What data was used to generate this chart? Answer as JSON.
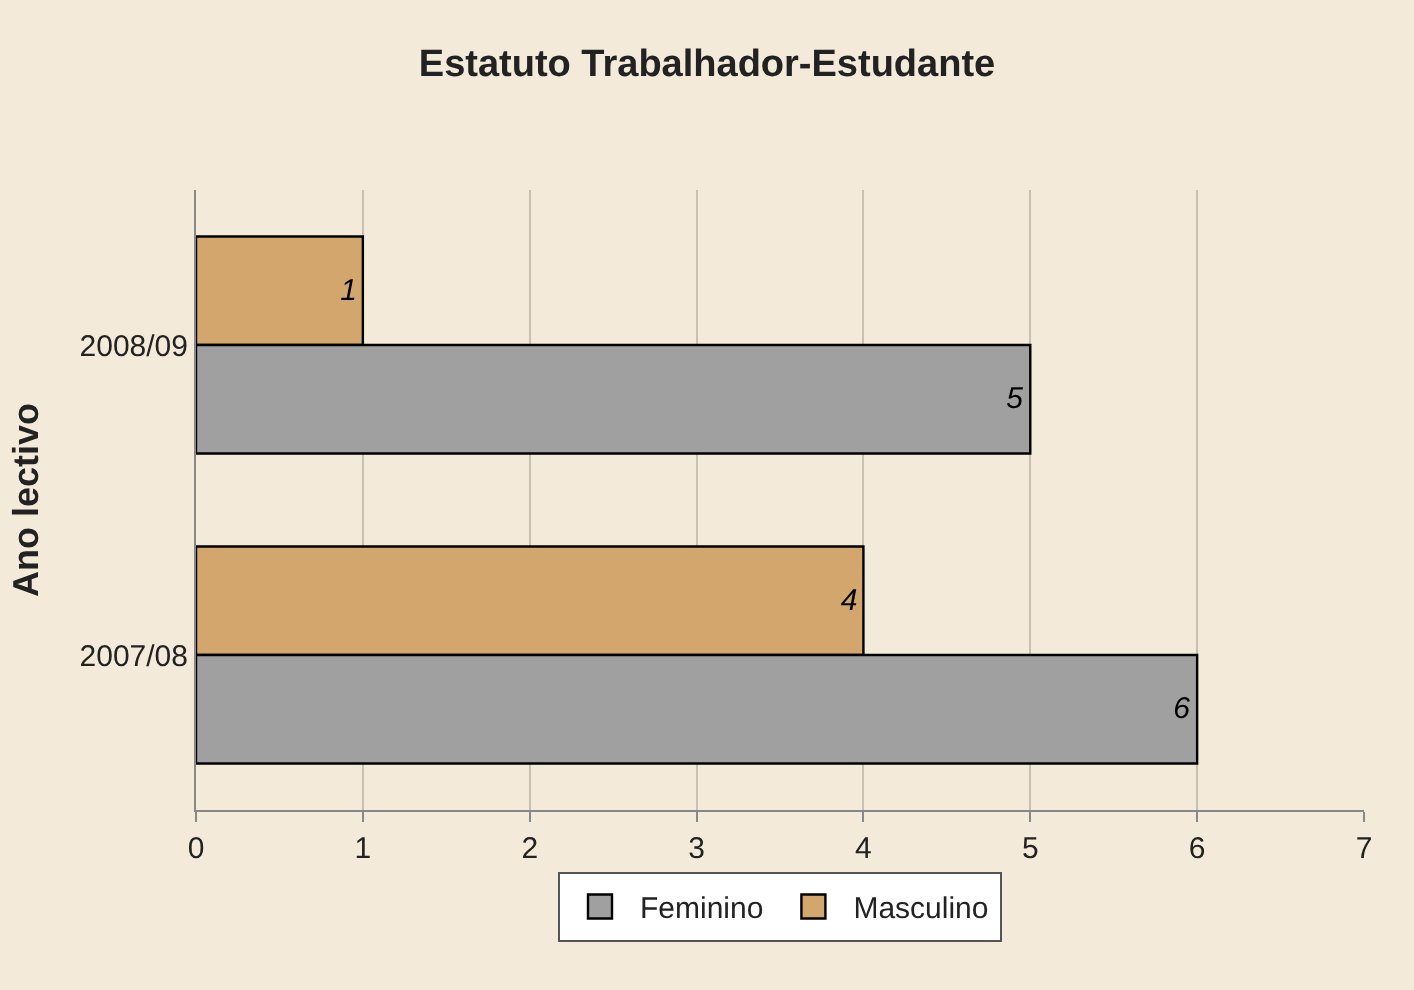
{
  "chart_data": {
    "type": "bar",
    "orientation": "horizontal",
    "title": "Estatuto Trabalhador-Estudante",
    "ylabel": "Ano lectivo",
    "categories": [
      "2008/09",
      "2007/08"
    ],
    "series": [
      {
        "name": "Feminino",
        "color": "#a0a0a0",
        "values": [
          5,
          6
        ]
      },
      {
        "name": "Masculino",
        "color": "#d2a66c",
        "values": [
          1,
          4
        ]
      }
    ],
    "xlim": [
      0,
      7
    ],
    "xticks": [
      0,
      1,
      2,
      3,
      4,
      5,
      6,
      7
    ],
    "grid": "x",
    "legend": "bottom",
    "data_labels": true
  }
}
